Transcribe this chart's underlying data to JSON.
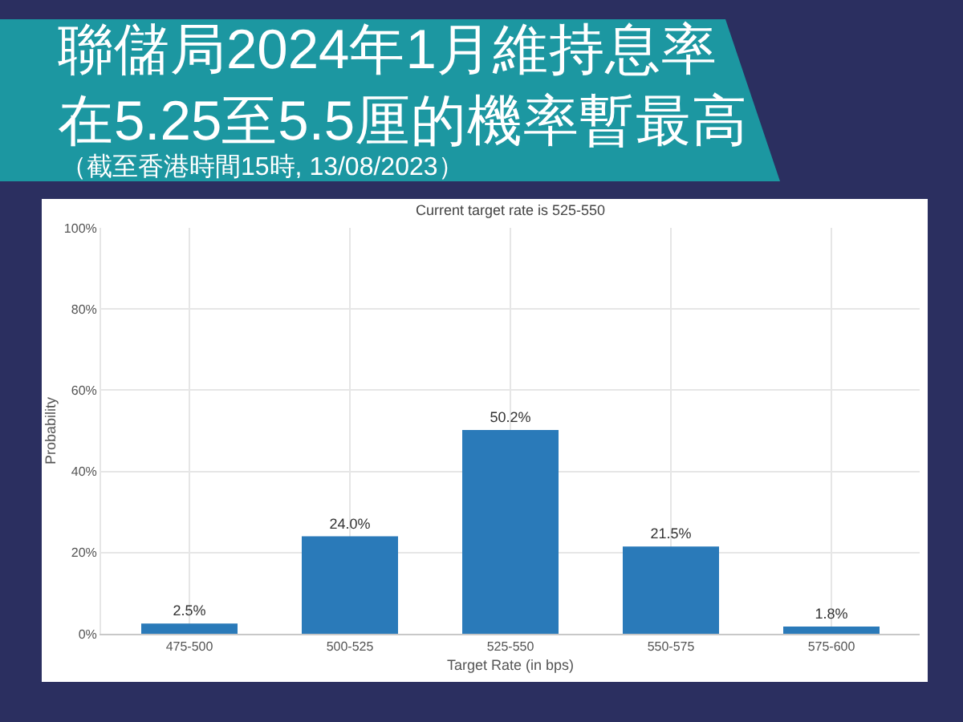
{
  "chart_data": {
    "type": "bar",
    "title": "聯儲局2024年1月維持息率在5.25至5.5厘的機率暫最高",
    "subtitle": "Current target rate is 525-550",
    "annotations": [
      "（截至香港時間15時, 13/08/2023）"
    ],
    "xlabel": "Target Rate (in bps)",
    "ylabel": "Probability",
    "categories": [
      "475-500",
      "500-525",
      "525-550",
      "550-575",
      "575-600"
    ],
    "values": [
      2.5,
      24.0,
      50.2,
      21.5,
      1.8
    ],
    "value_labels": [
      "2.5%",
      "24.0%",
      "50.2%",
      "21.5%",
      "1.8%"
    ],
    "color": "#2a7ab9",
    "ylim": [
      0,
      100
    ],
    "yticks": [
      {
        "value": 0,
        "label": "0%"
      },
      {
        "value": 20,
        "label": "20%"
      },
      {
        "value": 40,
        "label": "40%"
      },
      {
        "value": 60,
        "label": "60%"
      },
      {
        "value": 80,
        "label": "80%"
      },
      {
        "value": 100,
        "label": "100%"
      }
    ],
    "grid": true
  }
}
